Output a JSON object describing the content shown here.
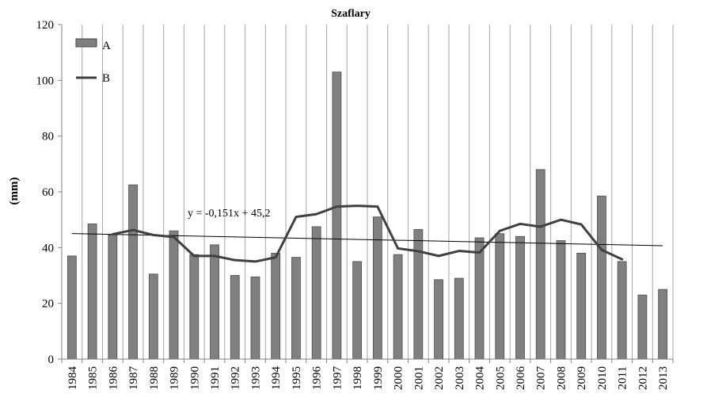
{
  "chart_data": {
    "type": "bar",
    "title": "Szaflary",
    "ylabel": "(mm)",
    "xlabel": "",
    "ylim": [
      0,
      120
    ],
    "yticks": [
      0,
      20,
      40,
      60,
      80,
      100,
      120
    ],
    "grid": "vertical",
    "legend": "top-left",
    "categories": [
      "1984",
      "1985",
      "1986",
      "1987",
      "1988",
      "1989",
      "1990",
      "1991",
      "1992",
      "1993",
      "1994",
      "1995",
      "1996",
      "1997",
      "1998",
      "1999",
      "2000",
      "2001",
      "2002",
      "2003",
      "2004",
      "2005",
      "2006",
      "2007",
      "2008",
      "2009",
      "2010",
      "2011",
      "2012",
      "2013"
    ],
    "series": [
      {
        "name": "A",
        "kind": "bar",
        "color": "#808080",
        "values": [
          37,
          48.5,
          44.5,
          62.5,
          30.5,
          46,
          37.5,
          41,
          30,
          29.5,
          38,
          36.5,
          47.5,
          103,
          35,
          51,
          37.5,
          46.5,
          28.5,
          29,
          43.5,
          45,
          44,
          68,
          42.5,
          38,
          58.5,
          35,
          23,
          25
        ]
      },
      {
        "name": "B",
        "kind": "line",
        "color": "#404040",
        "values": [
          null,
          null,
          44.8,
          46.3,
          44.5,
          43.8,
          37,
          37,
          35.5,
          35,
          36.5,
          51,
          52,
          54.7,
          55,
          54.7,
          39.7,
          38.7,
          37,
          38.8,
          38.2,
          46,
          48.5,
          47.5,
          50,
          48.3,
          39.2,
          35.8,
          null,
          null
        ]
      }
    ],
    "trendline": {
      "label": "y = -0,151x + 45,2",
      "slope": -0.151,
      "intercept": 45.2
    }
  }
}
